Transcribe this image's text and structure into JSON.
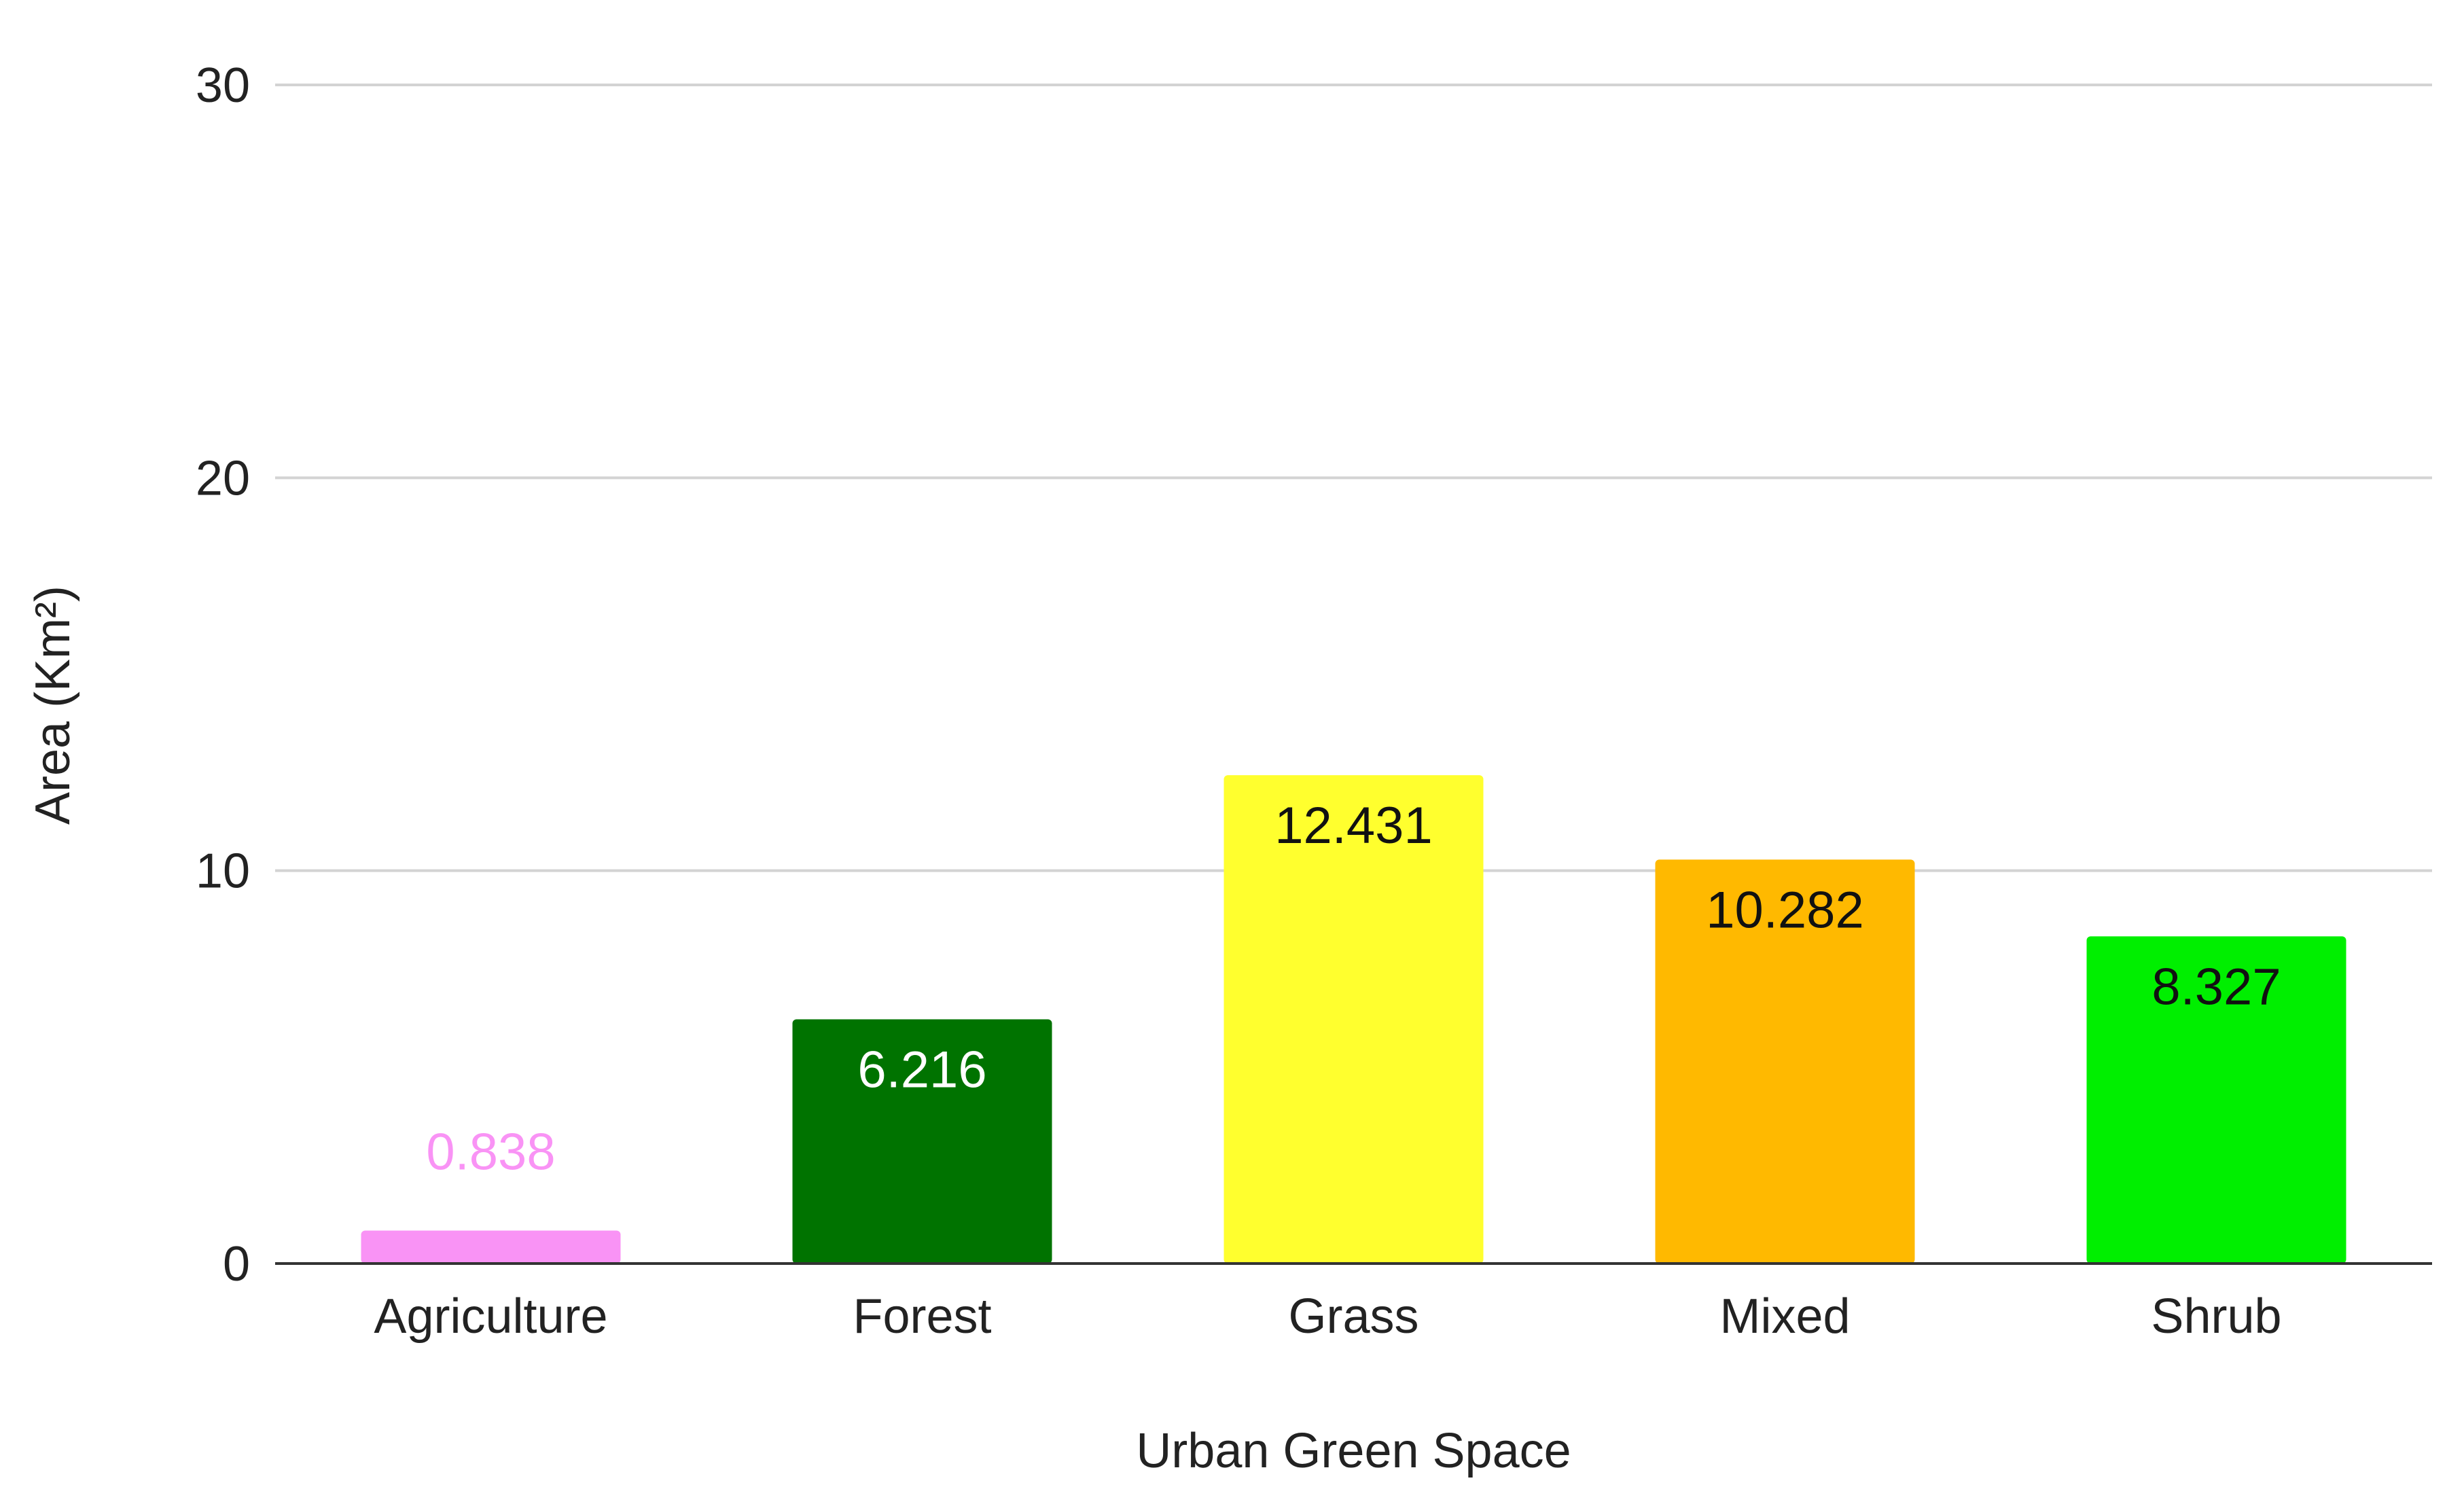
{
  "chart_data": {
    "type": "bar",
    "title": "",
    "xlabel": "Urban Green Space",
    "ylabel": "Area (Km²)",
    "categories": [
      "Agriculture",
      "Forest",
      "Grass",
      "Mixed",
      "Shrub"
    ],
    "values": [
      0.838,
      6.216,
      12.431,
      10.282,
      8.327
    ],
    "data_labels": [
      "0.838",
      "6.216",
      "12.431",
      "10.282",
      "8.327"
    ],
    "colors": [
      "#f993f5",
      "#007300",
      "#ffff2e",
      "#ffb900",
      "#00ef00"
    ],
    "label_colors": [
      "#f993f5",
      "#ffffff",
      "#111111",
      "#111111",
      "#111111"
    ],
    "label_inside": [
      false,
      true,
      true,
      true,
      true
    ],
    "ylim": [
      0,
      30
    ],
    "yticks": [
      0,
      10,
      20,
      30
    ],
    "ytick_labels": [
      "0",
      "10",
      "20",
      "30"
    ],
    "grid": true,
    "legend": "none"
  }
}
